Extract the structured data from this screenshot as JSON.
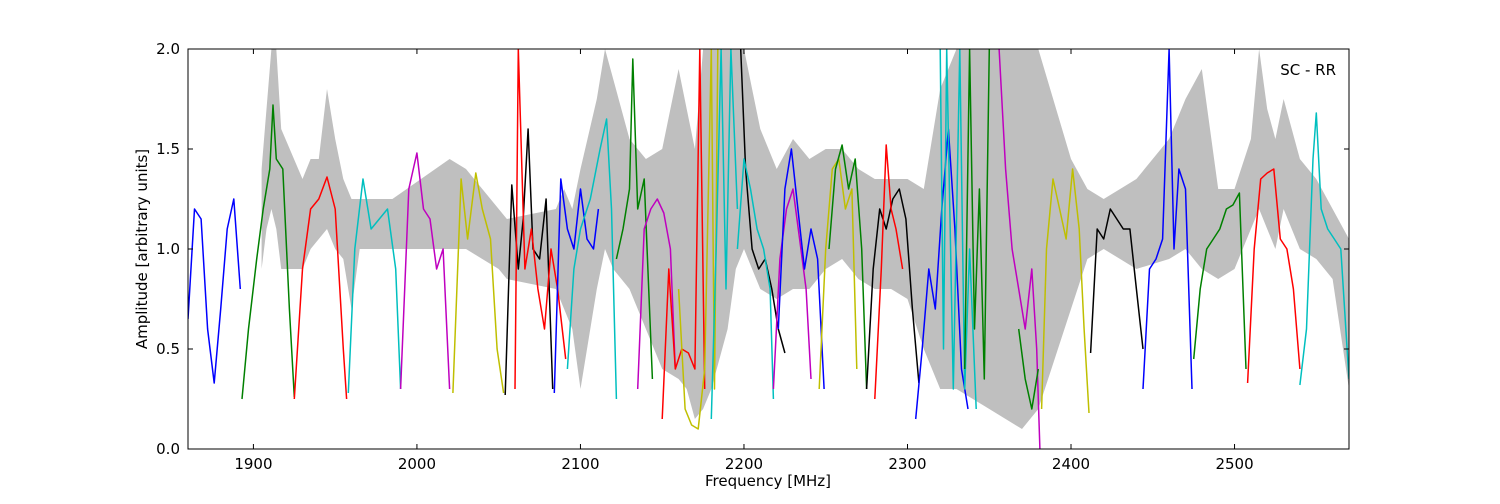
{
  "chart_data": {
    "type": "line",
    "title": "",
    "xlabel": "Frequency [MHz]",
    "ylabel": "Amplitude [arbitrary units]",
    "annotation": "SC - RR",
    "xlim": [
      1860,
      2570
    ],
    "ylim": [
      0.0,
      2.0
    ],
    "x_ticks": [
      1900,
      2000,
      2100,
      2200,
      2300,
      2400,
      2500
    ],
    "y_ticks": [
      "0.0",
      "0.5",
      "1.0",
      "1.5",
      "2.0"
    ],
    "grid": false,
    "legend": "none",
    "background_band": {
      "color": "#bfbfbf",
      "x": [
        1905,
        1908,
        1911,
        1914,
        1917,
        1930,
        1935,
        1940,
        1945,
        1950,
        1955,
        1960,
        1965,
        1975,
        1985,
        2020,
        2030,
        2040,
        2050,
        2055,
        2085,
        2090,
        2095,
        2100,
        2110,
        2115,
        2120,
        2130,
        2140,
        2150,
        2160,
        2165,
        2170,
        2175,
        2180,
        2190,
        2195,
        2200,
        2205,
        2210,
        2220,
        2230,
        2240,
        2250,
        2260,
        2270,
        2280,
        2290,
        2300,
        2310,
        2320,
        2330,
        2340,
        2350,
        2360,
        2370,
        2380,
        2400,
        2410,
        2420,
        2430,
        2440,
        2460,
        2470,
        2480,
        2490,
        2500,
        2510,
        2515,
        2520,
        2525,
        2530,
        2540,
        2550,
        2560,
        2570
      ],
      "upper": [
        1.4,
        1.7,
        2.0,
        2.0,
        1.6,
        1.35,
        1.45,
        1.45,
        1.8,
        1.55,
        1.35,
        1.25,
        1.25,
        1.25,
        1.25,
        1.45,
        1.4,
        1.3,
        1.2,
        1.15,
        1.2,
        1.3,
        1.2,
        1.4,
        1.75,
        2.0,
        1.85,
        1.55,
        1.45,
        1.5,
        1.9,
        1.7,
        1.5,
        2.0,
        2.0,
        2.0,
        2.0,
        2.0,
        1.8,
        1.6,
        1.4,
        1.55,
        1.45,
        1.5,
        1.5,
        1.4,
        1.35,
        1.35,
        1.35,
        1.3,
        1.8,
        2.0,
        2.0,
        2.0,
        2.0,
        2.0,
        2.0,
        1.45,
        1.3,
        1.25,
        1.3,
        1.35,
        1.55,
        1.75,
        1.9,
        1.3,
        1.3,
        1.55,
        2.0,
        1.7,
        1.55,
        1.75,
        1.45,
        1.35,
        1.2,
        1.05
      ],
      "lower": [
        0.9,
        1.1,
        1.2,
        1.1,
        0.9,
        0.9,
        1.0,
        1.05,
        1.1,
        1.0,
        0.95,
        0.7,
        1.0,
        1.0,
        1.0,
        1.0,
        1.0,
        0.95,
        0.9,
        0.85,
        0.8,
        0.7,
        0.6,
        0.3,
        0.8,
        1.0,
        0.9,
        0.8,
        0.6,
        0.4,
        0.35,
        0.3,
        0.15,
        0.2,
        0.3,
        0.6,
        0.9,
        1.0,
        0.9,
        0.8,
        0.75,
        0.8,
        0.8,
        0.9,
        0.95,
        0.85,
        0.8,
        0.8,
        0.75,
        0.5,
        0.3,
        0.3,
        0.25,
        0.2,
        0.15,
        0.1,
        0.2,
        0.7,
        0.95,
        1.0,
        0.95,
        0.9,
        0.95,
        1.0,
        0.9,
        0.85,
        0.9,
        1.1,
        1.2,
        1.1,
        1.0,
        1.2,
        1.0,
        0.95,
        0.85,
        0.3
      ]
    },
    "series": [
      {
        "color": "#0000ff",
        "x": [
          1860,
          1864,
          1868,
          1872,
          1876,
          1880,
          1884,
          1888,
          1892
        ],
        "y": [
          0.65,
          1.2,
          1.15,
          0.6,
          0.33,
          0.7,
          1.1,
          1.25,
          0.8
        ]
      },
      {
        "color": "#008000",
        "x": [
          1893,
          1897,
          1902,
          1906,
          1910,
          1912,
          1914,
          1918,
          1922,
          1925
        ],
        "y": [
          0.25,
          0.6,
          0.95,
          1.2,
          1.4,
          1.72,
          1.45,
          1.4,
          0.7,
          0.26
        ]
      },
      {
        "color": "#ff0000",
        "x": [
          1925,
          1930,
          1935,
          1940,
          1945,
          1950,
          1955,
          1957
        ],
        "y": [
          0.25,
          0.9,
          1.2,
          1.25,
          1.36,
          1.2,
          0.5,
          0.25
        ]
      },
      {
        "color": "#00bfbf",
        "x": [
          1958,
          1962,
          1967,
          1972,
          1977,
          1982,
          1987,
          1990
        ],
        "y": [
          0.28,
          1.0,
          1.35,
          1.1,
          1.15,
          1.2,
          0.9,
          0.3
        ]
      },
      {
        "color": "#bf00bf",
        "x": [
          1990,
          1995,
          2000,
          2004,
          2008,
          2012,
          2016,
          2020
        ],
        "y": [
          0.3,
          1.3,
          1.48,
          1.2,
          1.15,
          0.9,
          1.0,
          0.3
        ]
      },
      {
        "color": "#bfbf00",
        "x": [
          2022,
          2027,
          2031,
          2036,
          2040,
          2045,
          2049,
          2053
        ],
        "y": [
          0.28,
          1.35,
          1.05,
          1.38,
          1.2,
          1.05,
          0.5,
          0.28
        ]
      },
      {
        "color": "#000000",
        "x": [
          2054,
          2058,
          2062,
          2065,
          2068,
          2071,
          2075,
          2079,
          2083
        ],
        "y": [
          0.27,
          1.32,
          0.9,
          1.15,
          1.6,
          1.0,
          0.95,
          1.25,
          0.3
        ]
      },
      {
        "color": "#ff0000",
        "x": [
          2060,
          2062,
          2066,
          2070,
          2074,
          2078,
          2082,
          2086,
          2091
        ],
        "y": [
          0.3,
          2.0,
          0.9,
          1.1,
          0.8,
          0.6,
          1.0,
          0.8,
          0.45
        ]
      },
      {
        "color": "#0000ff",
        "x": [
          2084,
          2088,
          2092,
          2096,
          2100,
          2104,
          2108,
          2111
        ],
        "y": [
          0.28,
          1.35,
          1.1,
          1.0,
          1.3,
          1.05,
          1.0,
          1.2
        ]
      },
      {
        "color": "#00bfbf",
        "x": [
          2092,
          2096,
          2100,
          2106,
          2112,
          2116,
          2119,
          2122
        ],
        "y": [
          0.4,
          0.9,
          1.1,
          1.25,
          1.5,
          1.65,
          1.2,
          0.25
        ]
      },
      {
        "color": "#008000",
        "x": [
          2122,
          2126,
          2130,
          2132,
          2135,
          2139,
          2144
        ],
        "y": [
          0.95,
          1.1,
          1.3,
          1.95,
          1.2,
          1.35,
          0.35
        ]
      },
      {
        "color": "#bf00bf",
        "x": [
          2135,
          2139,
          2143,
          2147,
          2151,
          2155,
          2158
        ],
        "y": [
          0.3,
          1.1,
          1.2,
          1.25,
          1.18,
          1.0,
          0.4
        ]
      },
      {
        "color": "#ff0000",
        "x": [
          2150,
          2154,
          2158,
          2162,
          2166,
          2170,
          2173,
          2176
        ],
        "y": [
          0.15,
          0.9,
          0.4,
          0.5,
          0.48,
          0.4,
          2.0,
          0.3
        ]
      },
      {
        "color": "#bfbf00",
        "x": [
          2160,
          2164,
          2168,
          2172,
          2176,
          2180,
          2182,
          2184
        ],
        "y": [
          0.8,
          0.2,
          0.12,
          0.1,
          0.4,
          2.0,
          0.3,
          2.0
        ]
      },
      {
        "color": "#00bfbf",
        "x": [
          2180,
          2183,
          2186,
          2189,
          2192,
          2196
        ],
        "y": [
          0.15,
          1.0,
          2.0,
          0.8,
          2.0,
          1.2
        ]
      },
      {
        "color": "#000000",
        "x": [
          2198,
          2201,
          2205,
          2209,
          2213,
          2217,
          2221,
          2225
        ],
        "y": [
          2.0,
          1.4,
          1.0,
          0.9,
          0.95,
          0.8,
          0.6,
          0.48
        ]
      },
      {
        "color": "#00bfbf",
        "x": [
          2196,
          2200,
          2204,
          2208,
          2212,
          2216,
          2218
        ],
        "y": [
          1.0,
          1.45,
          1.3,
          1.1,
          1.0,
          0.8,
          0.25
        ]
      },
      {
        "color": "#bf00bf",
        "x": [
          2218,
          2222,
          2226,
          2230,
          2234,
          2238,
          2241
        ],
        "y": [
          0.3,
          0.95,
          1.2,
          1.3,
          1.05,
          0.8,
          0.35
        ]
      },
      {
        "color": "#0000ff",
        "x": [
          2221,
          2225,
          2229,
          2233,
          2237,
          2241,
          2245,
          2249
        ],
        "y": [
          0.6,
          1.3,
          1.5,
          1.2,
          0.9,
          1.1,
          0.95,
          0.3
        ]
      },
      {
        "color": "#bfbf00",
        "x": [
          2246,
          2250,
          2254,
          2258,
          2262,
          2266,
          2269
        ],
        "y": [
          0.3,
          1.0,
          1.4,
          1.45,
          1.2,
          1.3,
          0.4
        ]
      },
      {
        "color": "#008000",
        "x": [
          2252,
          2256,
          2260,
          2264,
          2268,
          2272,
          2275
        ],
        "y": [
          1.0,
          1.4,
          1.52,
          1.3,
          1.45,
          1.0,
          0.3
        ]
      },
      {
        "color": "#000000",
        "x": [
          2275,
          2279,
          2283,
          2287,
          2291,
          2295,
          2299,
          2303,
          2307
        ],
        "y": [
          0.3,
          0.9,
          1.2,
          1.1,
          1.25,
          1.3,
          1.15,
          0.7,
          0.33
        ]
      },
      {
        "color": "#ff0000",
        "x": [
          2280,
          2284,
          2287,
          2290,
          2293,
          2297
        ],
        "y": [
          0.25,
          0.9,
          1.52,
          1.2,
          1.1,
          0.9
        ]
      },
      {
        "color": "#0000ff",
        "x": [
          2305,
          2309,
          2313,
          2317,
          2321,
          2325,
          2329,
          2333,
          2337
        ],
        "y": [
          0.15,
          0.5,
          0.9,
          0.7,
          1.2,
          1.6,
          1.1,
          0.4,
          0.2
        ]
      },
      {
        "color": "#00bfbf",
        "x": [
          2320,
          2322,
          2324,
          2328,
          2332,
          2335,
          2338,
          2342
        ],
        "y": [
          2.0,
          0.5,
          2.0,
          0.3,
          2.0,
          0.3,
          1.0,
          0.2
        ]
      },
      {
        "color": "#008000",
        "x": [
          2335,
          2338,
          2341,
          2344,
          2347,
          2350
        ],
        "y": [
          0.4,
          2.0,
          0.6,
          1.3,
          0.35,
          2.0
        ]
      },
      {
        "color": "#bf00bf",
        "x": [
          2356,
          2360,
          2364,
          2368,
          2372,
          2376,
          2379,
          2381
        ],
        "y": [
          2.0,
          1.4,
          1.0,
          0.8,
          0.6,
          0.9,
          0.5,
          0.0
        ]
      },
      {
        "color": "#008000",
        "x": [
          2368,
          2372,
          2376,
          2380
        ],
        "y": [
          0.6,
          0.35,
          0.2,
          0.4
        ]
      },
      {
        "color": "#bfbf00",
        "x": [
          2382,
          2385,
          2389,
          2393,
          2397,
          2401,
          2405,
          2408,
          2411
        ],
        "y": [
          0.2,
          1.0,
          1.35,
          1.2,
          1.05,
          1.4,
          1.1,
          0.6,
          0.18
        ]
      },
      {
        "color": "#000000",
        "x": [
          2412,
          2416,
          2420,
          2424,
          2428,
          2432,
          2436,
          2440,
          2444
        ],
        "y": [
          0.48,
          1.1,
          1.05,
          1.2,
          1.15,
          1.1,
          1.1,
          0.8,
          0.5
        ]
      },
      {
        "color": "#0000ff",
        "x": [
          2444,
          2448,
          2452,
          2456,
          2460,
          2463,
          2466,
          2470,
          2474
        ],
        "y": [
          0.3,
          0.9,
          0.95,
          1.05,
          2.0,
          1.0,
          1.4,
          1.3,
          0.3
        ]
      },
      {
        "color": "#008000",
        "x": [
          2475,
          2479,
          2483,
          2487,
          2491,
          2495,
          2499,
          2503,
          2507
        ],
        "y": [
          0.45,
          0.8,
          1.0,
          1.05,
          1.1,
          1.2,
          1.22,
          1.28,
          0.4
        ]
      },
      {
        "color": "#ff0000",
        "x": [
          2508,
          2512,
          2516,
          2520,
          2524,
          2528,
          2532,
          2536,
          2540
        ],
        "y": [
          0.33,
          1.0,
          1.35,
          1.38,
          1.4,
          1.05,
          1.0,
          0.8,
          0.4
        ]
      },
      {
        "color": "#00bfbf",
        "x": [
          2540,
          2544,
          2548,
          2550,
          2553,
          2557,
          2561,
          2565,
          2570
        ],
        "y": [
          0.32,
          0.6,
          1.45,
          1.68,
          1.2,
          1.1,
          1.05,
          1.0,
          0.35
        ]
      }
    ]
  }
}
